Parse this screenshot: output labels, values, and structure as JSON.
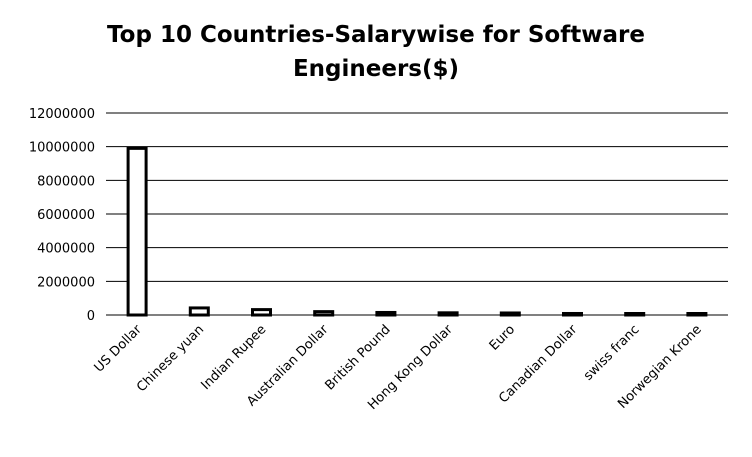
{
  "chart_data": {
    "type": "bar",
    "title_line1": "Top 10 Countries-Salarywise for Software",
    "title_line2": "Engineers($)",
    "xlabel": "",
    "ylabel": "",
    "ylim": [
      0,
      12000000
    ],
    "yticks": [
      0,
      2000000,
      4000000,
      6000000,
      8000000,
      10000000,
      12000000
    ],
    "categories": [
      "US Dollar",
      "Chinese yuan",
      "Indian Rupee",
      "Australian Dollar",
      "British Pound",
      "Hong Kong Dollar",
      "Euro",
      "Canadian Dollar",
      "swiss franc",
      "Norwegian Krone"
    ],
    "values": [
      9900000,
      420000,
      320000,
      200000,
      150000,
      130000,
      120000,
      90000,
      40000,
      30000
    ],
    "grid": true,
    "legend": "none",
    "bar_fill": "#ffffff",
    "bar_stroke": "#000000"
  }
}
